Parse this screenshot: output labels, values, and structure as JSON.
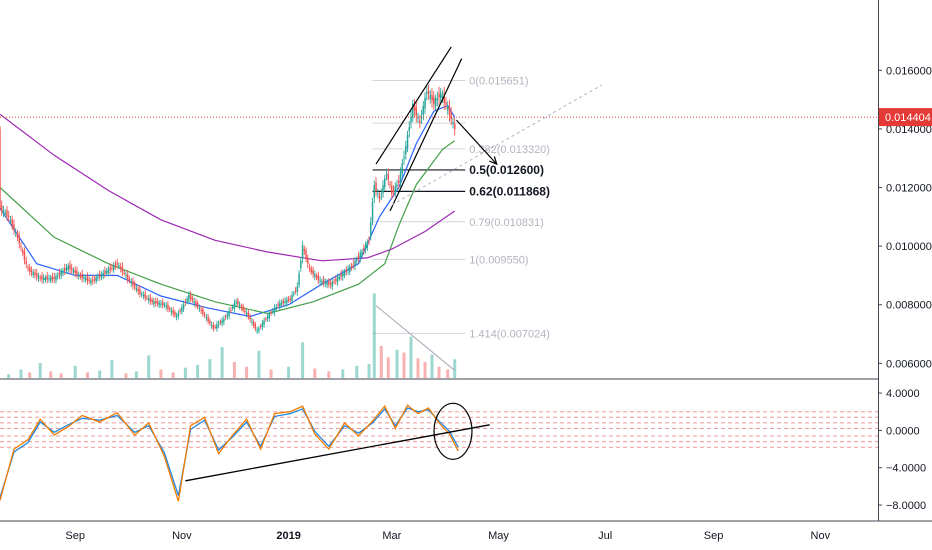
{
  "chart_data": {
    "type": "candlestick",
    "colors": {
      "up": "#26a69a",
      "down": "#ef5350",
      "ma_fast": "#2962ff",
      "ma_mid": "#43a047",
      "ma_slow": "#9c27b0",
      "fib_line": "#d1d4dc",
      "fib_label": "#b2b5be",
      "price_line": "#e53935",
      "osc_fast": "#f57c00",
      "osc_slow": "#1e88e5",
      "osc_level": "#ef9a9a",
      "drawing": "#000000"
    },
    "price_axis": {
      "ylim": [
        0.0055,
        0.0184
      ],
      "ticks": [
        0.006,
        0.008,
        0.01,
        0.012,
        0.014,
        0.016
      ],
      "tick_labels": [
        "0.006000",
        "0.008000",
        "0.010000",
        "0.012000",
        "0.014000",
        "0.016000"
      ],
      "last_price": 0.014404,
      "last_price_label": "0.014404"
    },
    "time_axis": {
      "xlim": [
        "2018-07-20",
        "2019-12-04"
      ],
      "ticks": [
        {
          "date": "2018-09-01",
          "label": "Sep"
        },
        {
          "date": "2018-11-01",
          "label": "Nov"
        },
        {
          "date": "2019-01-01",
          "label": "2019"
        },
        {
          "date": "2019-03-01",
          "label": "Mar"
        },
        {
          "date": "2019-05-01",
          "label": "May"
        },
        {
          "date": "2019-07-01",
          "label": "Jul"
        },
        {
          "date": "2019-09-01",
          "label": "Sep"
        },
        {
          "date": "2019-11-01",
          "label": "Nov"
        }
      ]
    },
    "price_path": [
      [
        "2018-07-20",
        0.0113
      ],
      [
        "2018-07-25",
        0.011
      ],
      [
        "2018-07-30",
        0.0103
      ],
      [
        "2018-08-05",
        0.0092
      ],
      [
        "2018-08-12",
        0.0089
      ],
      [
        "2018-08-20",
        0.0089
      ],
      [
        "2018-08-28",
        0.0093
      ],
      [
        "2018-09-03",
        0.009
      ],
      [
        "2018-09-10",
        0.0088
      ],
      [
        "2018-09-18",
        0.0091
      ],
      [
        "2018-09-25",
        0.0094
      ],
      [
        "2018-10-01",
        0.0089
      ],
      [
        "2018-10-08",
        0.0084
      ],
      [
        "2018-10-15",
        0.0081
      ],
      [
        "2018-10-22",
        0.008
      ],
      [
        "2018-10-29",
        0.0076
      ],
      [
        "2018-11-05",
        0.0083
      ],
      [
        "2018-11-12",
        0.0078
      ],
      [
        "2018-11-19",
        0.0072
      ],
      [
        "2018-11-25",
        0.0075
      ],
      [
        "2018-12-02",
        0.0081
      ],
      [
        "2018-12-08",
        0.0077
      ],
      [
        "2018-12-14",
        0.0071
      ],
      [
        "2018-12-20",
        0.0076
      ],
      [
        "2018-12-26",
        0.008
      ],
      [
        "2019-01-02",
        0.0082
      ],
      [
        "2019-01-06",
        0.0086
      ],
      [
        "2019-01-09",
        0.01
      ],
      [
        "2019-01-13",
        0.0092
      ],
      [
        "2019-01-19",
        0.0088
      ],
      [
        "2019-01-25",
        0.0087
      ],
      [
        "2019-01-31",
        0.009
      ],
      [
        "2019-02-06",
        0.0093
      ],
      [
        "2019-02-12",
        0.0098
      ],
      [
        "2019-02-16",
        0.0102
      ],
      [
        "2019-02-19",
        0.0121
      ],
      [
        "2019-02-22",
        0.0116
      ],
      [
        "2019-02-26",
        0.0125
      ],
      [
        "2019-03-01",
        0.0118
      ],
      [
        "2019-03-05",
        0.0122
      ],
      [
        "2019-03-09",
        0.0134
      ],
      [
        "2019-03-13",
        0.0148
      ],
      [
        "2019-03-17",
        0.0142
      ],
      [
        "2019-03-21",
        0.0153
      ],
      [
        "2019-03-25",
        0.0149
      ],
      [
        "2019-03-29",
        0.0152
      ],
      [
        "2019-04-02",
        0.0147
      ],
      [
        "2019-04-06",
        0.014
      ]
    ],
    "moving_averages": [
      {
        "key": "ma_fast",
        "points": [
          [
            "2018-07-20",
            0.0113
          ],
          [
            "2018-08-10",
            0.0094
          ],
          [
            "2018-09-01",
            0.009
          ],
          [
            "2018-09-25",
            0.009
          ],
          [
            "2018-10-20",
            0.0083
          ],
          [
            "2018-11-15",
            0.0079
          ],
          [
            "2018-12-10",
            0.0076
          ],
          [
            "2019-01-01",
            0.008
          ],
          [
            "2019-01-20",
            0.0087
          ],
          [
            "2019-02-10",
            0.0094
          ],
          [
            "2019-02-22",
            0.011
          ],
          [
            "2019-03-05",
            0.012
          ],
          [
            "2019-03-15",
            0.0135
          ],
          [
            "2019-03-25",
            0.0146
          ],
          [
            "2019-04-02",
            0.0148
          ],
          [
            "2019-04-06",
            0.0144
          ]
        ]
      },
      {
        "key": "ma_mid",
        "points": [
          [
            "2018-07-20",
            0.012
          ],
          [
            "2018-08-20",
            0.0103
          ],
          [
            "2018-09-20",
            0.0094
          ],
          [
            "2018-10-20",
            0.0087
          ],
          [
            "2018-11-20",
            0.0081
          ],
          [
            "2018-12-20",
            0.0077
          ],
          [
            "2019-01-15",
            0.0081
          ],
          [
            "2019-02-10",
            0.0087
          ],
          [
            "2019-02-25",
            0.0094
          ],
          [
            "2019-03-05",
            0.0107
          ],
          [
            "2019-03-15",
            0.0121
          ],
          [
            "2019-03-30",
            0.0133
          ],
          [
            "2019-04-06",
            0.0136
          ]
        ]
      },
      {
        "key": "ma_slow",
        "points": [
          [
            "2018-07-20",
            0.0145
          ],
          [
            "2018-08-20",
            0.0131
          ],
          [
            "2018-09-20",
            0.0119
          ],
          [
            "2018-10-20",
            0.0109
          ],
          [
            "2018-11-20",
            0.0102
          ],
          [
            "2018-12-20",
            0.0098
          ],
          [
            "2019-01-20",
            0.0095
          ],
          [
            "2019-02-15",
            0.0096
          ],
          [
            "2019-03-01",
            0.0099
          ],
          [
            "2019-03-20",
            0.0105
          ],
          [
            "2019-04-06",
            0.0112
          ]
        ]
      }
    ],
    "volume": [
      [
        "2018-07-25",
        4
      ],
      [
        "2018-08-01",
        9
      ],
      [
        "2018-08-06",
        6
      ],
      [
        "2018-08-12",
        16
      ],
      [
        "2018-08-18",
        7
      ],
      [
        "2018-08-24",
        5
      ],
      [
        "2018-09-01",
        13
      ],
      [
        "2018-09-08",
        6
      ],
      [
        "2018-09-15",
        8
      ],
      [
        "2018-09-22",
        19
      ],
      [
        "2018-09-30",
        5
      ],
      [
        "2018-10-06",
        7
      ],
      [
        "2018-10-13",
        24
      ],
      [
        "2018-10-20",
        9
      ],
      [
        "2018-10-27",
        6
      ],
      [
        "2018-11-03",
        11
      ],
      [
        "2018-11-10",
        14
      ],
      [
        "2018-11-17",
        20
      ],
      [
        "2018-11-24",
        33
      ],
      [
        "2018-12-01",
        17
      ],
      [
        "2018-12-08",
        12
      ],
      [
        "2018-12-15",
        29
      ],
      [
        "2018-12-22",
        9
      ],
      [
        "2019-01-01",
        12
      ],
      [
        "2019-01-09",
        38
      ],
      [
        "2019-01-16",
        10
      ],
      [
        "2019-01-24",
        7
      ],
      [
        "2019-02-01",
        9
      ],
      [
        "2019-02-09",
        13
      ],
      [
        "2019-02-16",
        15
      ],
      [
        "2019-02-19",
        90
      ],
      [
        "2019-02-23",
        34
      ],
      [
        "2019-02-27",
        22
      ],
      [
        "2019-03-04",
        30
      ],
      [
        "2019-03-08",
        27
      ],
      [
        "2019-03-12",
        44
      ],
      [
        "2019-03-16",
        21
      ],
      [
        "2019-03-20",
        17
      ],
      [
        "2019-03-24",
        25
      ],
      [
        "2019-03-28",
        12
      ],
      [
        "2019-04-02",
        9
      ],
      [
        "2019-04-06",
        20
      ]
    ],
    "volume_max": 100,
    "fibonacci": [
      {
        "price": 0.015651,
        "label": "0(0.015651)",
        "strong": false
      },
      {
        "price": 0.01332,
        "label": "0.382(0.013320)",
        "strong": false
      },
      {
        "price": 0.0126,
        "label": "0.5(0.012600)",
        "strong": true
      },
      {
        "price": 0.011868,
        "label": "0.62(0.011868)",
        "strong": true
      },
      {
        "price": 0.010831,
        "label": "0.79(0.010831)",
        "strong": false
      },
      {
        "price": 0.00955,
        "label": "1(0.009550)",
        "strong": false
      },
      {
        "price": 0.007024,
        "label": "1.414(0.007024)",
        "strong": false
      }
    ],
    "fib_extra_level": 0.0142,
    "fib_range": [
      "2019-02-18",
      "2019-04-12"
    ],
    "oscillator": {
      "ylim": [
        -9.6,
        5.4
      ],
      "ticks": [
        4,
        0,
        -4,
        -8
      ],
      "tick_labels": [
        "4.0000",
        "0.0000",
        "−4.0000",
        "−8.0000"
      ],
      "levels": [
        2.0,
        1.4,
        0.8,
        0.2,
        -0.6,
        -1.2,
        -1.8
      ],
      "fast": [
        [
          "2018-07-20",
          -7.5
        ],
        [
          "2018-07-28",
          -2.0
        ],
        [
          "2018-08-05",
          -1.0
        ],
        [
          "2018-08-12",
          1.2
        ],
        [
          "2018-08-20",
          -0.5
        ],
        [
          "2018-08-28",
          0.4
        ],
        [
          "2018-09-05",
          1.6
        ],
        [
          "2018-09-15",
          0.9
        ],
        [
          "2018-09-25",
          1.9
        ],
        [
          "2018-10-05",
          -0.5
        ],
        [
          "2018-10-13",
          0.8
        ],
        [
          "2018-10-22",
          -2.8
        ],
        [
          "2018-10-30",
          -7.6
        ],
        [
          "2018-11-06",
          0.5
        ],
        [
          "2018-11-14",
          1.4
        ],
        [
          "2018-11-22",
          -2.5
        ],
        [
          "2018-11-30",
          -0.5
        ],
        [
          "2018-12-08",
          1.2
        ],
        [
          "2018-12-16",
          -2.0
        ],
        [
          "2018-12-24",
          1.8
        ],
        [
          "2019-01-02",
          2.0
        ],
        [
          "2019-01-09",
          2.6
        ],
        [
          "2019-01-16",
          -0.4
        ],
        [
          "2019-01-24",
          -2.0
        ],
        [
          "2019-02-02",
          0.8
        ],
        [
          "2019-02-10",
          -0.6
        ],
        [
          "2019-02-18",
          1.0
        ],
        [
          "2019-02-25",
          2.6
        ],
        [
          "2019-03-03",
          0.2
        ],
        [
          "2019-03-10",
          2.7
        ],
        [
          "2019-03-16",
          1.8
        ],
        [
          "2019-03-22",
          2.4
        ],
        [
          "2019-03-28",
          0.8
        ],
        [
          "2019-04-03",
          -0.4
        ],
        [
          "2019-04-08",
          -2.2
        ]
      ],
      "slow": [
        [
          "2018-07-20",
          -7.2
        ],
        [
          "2018-07-28",
          -2.3
        ],
        [
          "2018-08-05",
          -1.3
        ],
        [
          "2018-08-12",
          0.9
        ],
        [
          "2018-08-20",
          -0.2
        ],
        [
          "2018-08-28",
          0.6
        ],
        [
          "2018-09-05",
          1.3
        ],
        [
          "2018-09-15",
          1.1
        ],
        [
          "2018-09-25",
          1.6
        ],
        [
          "2018-10-05",
          -0.2
        ],
        [
          "2018-10-13",
          0.5
        ],
        [
          "2018-10-22",
          -2.4
        ],
        [
          "2018-10-30",
          -7.0
        ],
        [
          "2018-11-06",
          0.1
        ],
        [
          "2018-11-14",
          1.1
        ],
        [
          "2018-11-22",
          -2.1
        ],
        [
          "2018-11-30",
          -0.7
        ],
        [
          "2018-12-08",
          0.9
        ],
        [
          "2018-12-16",
          -1.7
        ],
        [
          "2018-12-24",
          1.5
        ],
        [
          "2019-01-02",
          1.8
        ],
        [
          "2019-01-09",
          2.3
        ],
        [
          "2019-01-16",
          -0.1
        ],
        [
          "2019-01-24",
          -1.7
        ],
        [
          "2019-02-02",
          0.5
        ],
        [
          "2019-02-10",
          -0.3
        ],
        [
          "2019-02-18",
          0.8
        ],
        [
          "2019-02-25",
          2.3
        ],
        [
          "2019-03-03",
          0.5
        ],
        [
          "2019-03-10",
          2.4
        ],
        [
          "2019-03-16",
          2.0
        ],
        [
          "2019-03-22",
          2.2
        ],
        [
          "2019-03-28",
          1.0
        ],
        [
          "2019-04-03",
          -0.1
        ],
        [
          "2019-04-08",
          -1.8
        ]
      ]
    },
    "drawings": {
      "channel_upper": [
        [
          "2019-02-20",
          0.0128
        ],
        [
          "2019-04-04",
          0.0168
        ]
      ],
      "channel_lower": [
        [
          "2019-02-28",
          0.0112
        ],
        [
          "2019-04-10",
          0.0164
        ]
      ],
      "projection_arrow": [
        [
          "2019-04-07",
          0.0143
        ],
        [
          "2019-04-30",
          0.0128
        ]
      ],
      "trend_extension": [
        [
          "2019-03-01",
          0.0114
        ],
        [
          "2019-06-29",
          0.0155
        ]
      ],
      "osc_trendline": [
        [
          "2018-11-03",
          -5.4
        ],
        [
          "2019-04-26",
          0.6
        ]
      ],
      "osc_circle_center": [
        "2019-04-05",
        -0.1
      ],
      "volume_trend": [
        [
          "2019-02-20",
          77
        ],
        [
          "2019-04-06",
          8
        ]
      ]
    }
  }
}
